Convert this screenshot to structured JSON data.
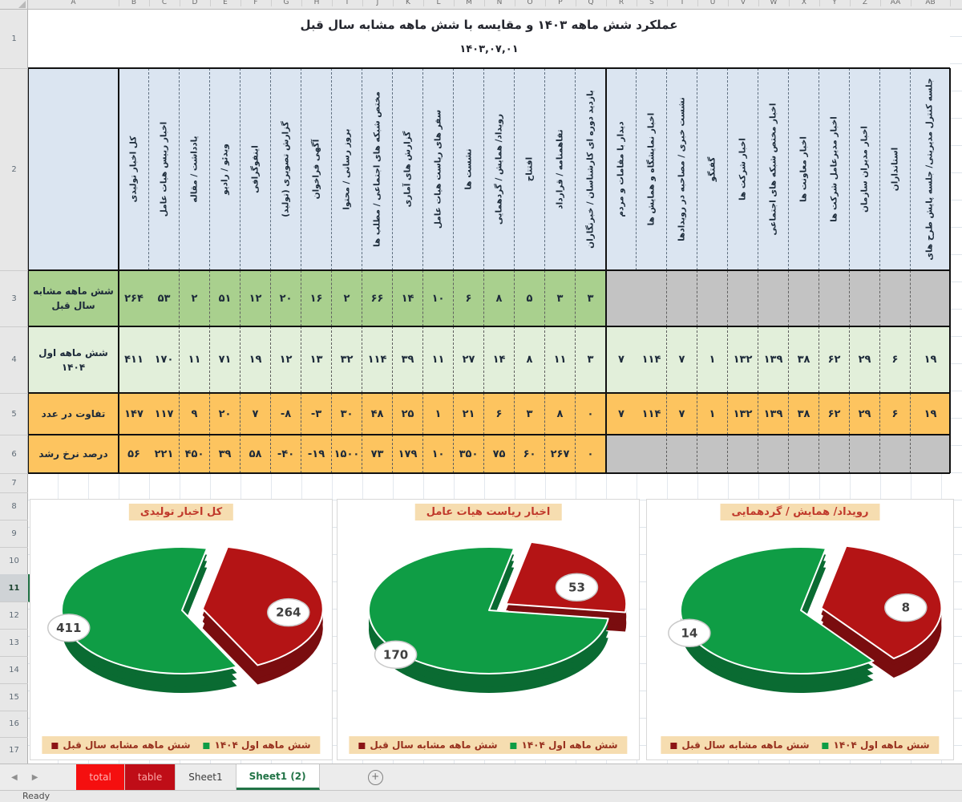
{
  "chrome": {
    "column_letters": [
      "A",
      "B",
      "C",
      "D",
      "E",
      "F",
      "G",
      "H",
      "I",
      "J",
      "K",
      "L",
      "M",
      "N",
      "O",
      "P",
      "Q",
      "R",
      "S",
      "T",
      "U",
      "V",
      "W",
      "X",
      "Y",
      "Z",
      "AA",
      "AB"
    ],
    "row_numbers": [
      "1",
      "2",
      "3",
      "4",
      "5",
      "6",
      "7",
      "8",
      "9",
      "10",
      "11",
      "12",
      "13",
      "14",
      "15",
      "16",
      "17"
    ],
    "selected_row": "11",
    "nav_left_icon": "◀",
    "nav_right_icon": "▶",
    "sheet_tabs": [
      {
        "label": "total",
        "style": "red1"
      },
      {
        "label": "table",
        "style": "red2"
      },
      {
        "label": "Sheet1",
        "style": "normal"
      },
      {
        "label": "Sheet1 (2)",
        "style": "active"
      }
    ],
    "new_sheet_icon": "+",
    "status": "Ready"
  },
  "title": {
    "line1": "عملکرد شش ماهه ۱۴۰۳ و مقایسه با شش ماهه مشابه سال قبل",
    "line2": "۱۴۰۳,۰۷,۰۱"
  },
  "table": {
    "columns": [
      "کل اخبار تولیدی",
      "اخبار رییس هیات عامل",
      "یادداشت / مقاله",
      "ویدئو / رادیو",
      "اینفوگرافی",
      "گزارش تصویری (تولید)",
      "آگهی فراخوان",
      "بروز رسانی / محتوا",
      "مختص شبکه های اجتماعی / مطلب ها",
      "گزارش های آماری",
      "سفر های ریاست هیات عامل",
      "نشست ها",
      "رویداد/ همایش / گردهمایی",
      "افتتاح",
      "تفاهمنامه / قرارداد",
      "بازدید دوره ای کارشناسان / خبرنگاران",
      "دیدار با مقامات و مردم",
      "اخبار نمایشگاه و همایش ها",
      "نشست خبری / مصاحبه در رویدادها",
      "گفتگو",
      "اخبار شرکت ها",
      "اخبار مختص شبکه های اجتماعی",
      "اخبار معاونت ها",
      "اخبار مدیرعامل شرکت ها",
      "اخبار مدیران سازمان",
      "استانداران",
      "جلسه کنترل مدیریتی/ جلسه پایش طرح های"
    ],
    "rows": [
      {
        "label": "شش ماهه مشابه سال قبل",
        "bg": "#a9d08e",
        "gray_bg": "#c3c3c3",
        "values": [
          "۲۶۴",
          "۵۳",
          "۲",
          "۵۱",
          "۱۲",
          "۲۰",
          "۱۶",
          "۲",
          "۶۶",
          "۱۴",
          "۱۰",
          "۶",
          "۸",
          "۵",
          "۳",
          "۳",
          "",
          "",
          "",
          "",
          "",
          "",
          "",
          "",
          "",
          "",
          ""
        ]
      },
      {
        "label": "شش ماهه اول ۱۴۰۴",
        "bg": "#e2efda",
        "gray_bg": "#e2efda",
        "values": [
          "۴۱۱",
          "۱۷۰",
          "۱۱",
          "۷۱",
          "۱۹",
          "۱۲",
          "۱۳",
          "۳۲",
          "۱۱۴",
          "۳۹",
          "۱۱",
          "۲۷",
          "۱۴",
          "۸",
          "۱۱",
          "۳",
          "۷",
          "۱۱۴",
          "۷",
          "۱",
          "۱۳۲",
          "۱۳۹",
          "۳۸",
          "۶۲",
          "۲۹",
          "۶",
          "۱۹"
        ]
      },
      {
        "label": "تفاوت در عدد",
        "bg": "#fdc45f",
        "gray_bg": "#fdc45f",
        "values": [
          "۱۴۷",
          "۱۱۷",
          "۹",
          "۲۰",
          "۷",
          "-۸",
          "-۳",
          "۳۰",
          "۴۸",
          "۲۵",
          "۱",
          "۲۱",
          "۶",
          "۳",
          "۸",
          "۰",
          "۷",
          "۱۱۴",
          "۷",
          "۱",
          "۱۳۲",
          "۱۳۹",
          "۳۸",
          "۶۲",
          "۲۹",
          "۶",
          "۱۹"
        ]
      },
      {
        "label": "درصد نرخ رشد",
        "bg": "#fdc45f",
        "gray_bg": "#c3c3c3",
        "values": [
          "۵۶",
          "۲۲۱",
          "۴۵۰",
          "۳۹",
          "۵۸",
          "-۴۰",
          "-۱۹",
          "۱۵۰۰",
          "۷۳",
          "۱۷۹",
          "۱۰",
          "۳۵۰",
          "۷۵",
          "۶۰",
          "۲۶۷",
          "۰",
          "",
          "",
          "",
          "",
          "",
          "",
          "",
          "",
          "",
          "",
          ""
        ]
      }
    ]
  },
  "palette": {
    "current": "#0f9d45",
    "current_dark": "#0a6b32",
    "previous": "#b41415",
    "previous_dark": "#7a0d0f",
    "legend_previous_square": "#8c1415"
  },
  "chart_data": [
    {
      "type": "pie",
      "title": "کل اخبار تولیدی",
      "slices": [
        {
          "name": "شش ماهه اول ۱۴۰۴",
          "value": 411,
          "label": "411",
          "exploded": false
        },
        {
          "name": "شش ماهه مشابه سال قبل",
          "value": 264,
          "label": "264",
          "exploded": true
        }
      ],
      "legend": [
        "شش ماهه اول ۱۴۰۴",
        "شش ماهه مشابه سال قبل"
      ]
    },
    {
      "type": "pie",
      "title": "اخبار ریاست هیات عامل",
      "slices": [
        {
          "name": "شش ماهه اول ۱۴۰۴",
          "value": 170,
          "label": "170",
          "exploded": false
        },
        {
          "name": "شش ماهه مشابه سال قبل",
          "value": 53,
          "label": "53",
          "exploded": true
        }
      ],
      "legend": [
        "شش ماهه اول ۱۴۰۴",
        "شش ماهه مشابه سال قبل"
      ]
    },
    {
      "type": "pie",
      "title": "رویداد/ همایش / گردهمایی",
      "slices": [
        {
          "name": "شش ماهه اول ۱۴۰۴",
          "value": 14,
          "label": "14",
          "exploded": false
        },
        {
          "name": "شش ماهه مشابه سال قبل",
          "value": 8,
          "label": "8",
          "exploded": true
        }
      ],
      "legend": [
        "شش ماهه اول ۱۴۰۴",
        "شش ماهه مشابه سال قبل"
      ]
    }
  ]
}
